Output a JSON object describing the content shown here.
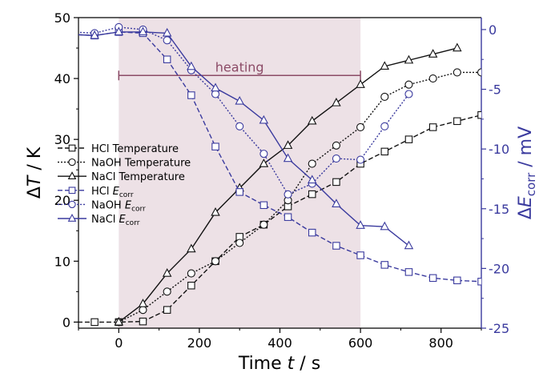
{
  "chart_data": {
    "type": "line",
    "heating_label": "heating",
    "heating_interval": [
      0,
      600
    ],
    "heating_arrow_y": 40.5,
    "x_axis": {
      "label_text": "Time ",
      "label_italic": "t",
      "label_unit": " / s",
      "lim": [
        -100,
        900
      ],
      "ticks": [
        0,
        200,
        400,
        600,
        800
      ]
    },
    "y_left": {
      "label_text": "Δ",
      "label_italic": "T",
      "label_unit": " / K",
      "lim": [
        -1,
        50
      ],
      "ticks": [
        0,
        10,
        20,
        30,
        40,
        50
      ]
    },
    "y_right": {
      "label_text": "Δ",
      "label_italic": "E",
      "label_sub": "corr",
      "label_unit": " / mV",
      "lim": [
        -25,
        1
      ],
      "ticks": [
        0,
        -5,
        -10,
        -15,
        -20,
        -25
      ],
      "tick_labels": [
        "0",
        "-5",
        "-10",
        "-15",
        "-20",
        "-25"
      ]
    },
    "colors": {
      "temperature": "#111111",
      "ecorr": "#3a3a9e",
      "heating_band": "#ede1e6",
      "heating_arrow": "#8b4a66",
      "right_axis": "#3a3a9e"
    },
    "series": [
      {
        "name": "HCl Temperature",
        "axis": "left",
        "marker": "square",
        "dash": "dashed",
        "color_key": "temperature",
        "x": [
          -120,
          -60,
          0,
          60,
          120,
          180,
          240,
          300,
          360,
          420,
          480,
          540,
          600,
          660,
          720,
          780,
          840,
          900
        ],
        "y": [
          0,
          0,
          0,
          0.1,
          2,
          6,
          10,
          14,
          16,
          19,
          21,
          23,
          26,
          28,
          30,
          32,
          33,
          34
        ]
      },
      {
        "name": "NaOH Temperature",
        "axis": "left",
        "marker": "circle",
        "dash": "dotted",
        "color_key": "temperature",
        "x": [
          0,
          60,
          120,
          180,
          240,
          300,
          360,
          420,
          480,
          540,
          600,
          660,
          720,
          780,
          840,
          900
        ],
        "y": [
          0,
          2,
          5,
          8,
          10,
          13,
          16,
          20,
          26,
          29,
          32,
          37,
          39,
          40,
          41,
          41
        ]
      },
      {
        "name": "NaCl Temperature",
        "axis": "left",
        "marker": "triangle",
        "dash": "solid",
        "color_key": "temperature",
        "x": [
          0,
          60,
          120,
          180,
          240,
          300,
          360,
          420,
          480,
          540,
          600,
          660,
          720,
          780,
          840
        ],
        "y": [
          0,
          3,
          8,
          12,
          18,
          22,
          26,
          29,
          33,
          36,
          39,
          42,
          43,
          44,
          45
        ]
      },
      {
        "name": "HCl ",
        "name_italic": "E",
        "name_sub": "corr",
        "axis": "right",
        "marker": "square",
        "dash": "dashed",
        "color_key": "ecorr",
        "x": [
          -120,
          -60,
          0,
          60,
          120,
          180,
          240,
          300,
          360,
          420,
          480,
          540,
          600,
          660,
          720,
          780,
          840,
          900
        ],
        "y": [
          -0.4,
          -0.5,
          -0.2,
          -0.3,
          -2.5,
          -5.5,
          -9.8,
          -13.6,
          -14.7,
          -15.7,
          -17.0,
          -18.1,
          -18.9,
          -19.7,
          -20.3,
          -20.8,
          -21.0,
          -21.1
        ]
      },
      {
        "name": "NaOH ",
        "name_italic": "E",
        "name_sub": "corr",
        "axis": "right",
        "marker": "circle",
        "dash": "dotted",
        "color_key": "ecorr",
        "x": [
          -120,
          -60,
          0,
          60,
          120,
          180,
          240,
          300,
          360,
          420,
          480,
          540,
          600,
          660,
          720
        ],
        "y": [
          -0.2,
          -0.3,
          0.2,
          0.0,
          -0.9,
          -3.4,
          -5.4,
          -8.1,
          -10.4,
          -13.8,
          -12.9,
          -10.8,
          -10.9,
          -8.1,
          -5.4
        ]
      },
      {
        "name": "NaCl ",
        "name_italic": "E",
        "name_sub": "corr",
        "axis": "right",
        "marker": "triangle",
        "dash": "solid",
        "color_key": "ecorr",
        "x": [
          -120,
          -60,
          0,
          60,
          120,
          180,
          240,
          300,
          360,
          420,
          480,
          540,
          600,
          660,
          720
        ],
        "y": [
          -0.4,
          -0.5,
          -0.2,
          -0.2,
          -0.3,
          -3.1,
          -4.9,
          -6.0,
          -7.6,
          -10.8,
          -12.6,
          -14.6,
          -16.4,
          -16.5,
          -18.1
        ]
      }
    ],
    "legend_position": "left-middle"
  }
}
